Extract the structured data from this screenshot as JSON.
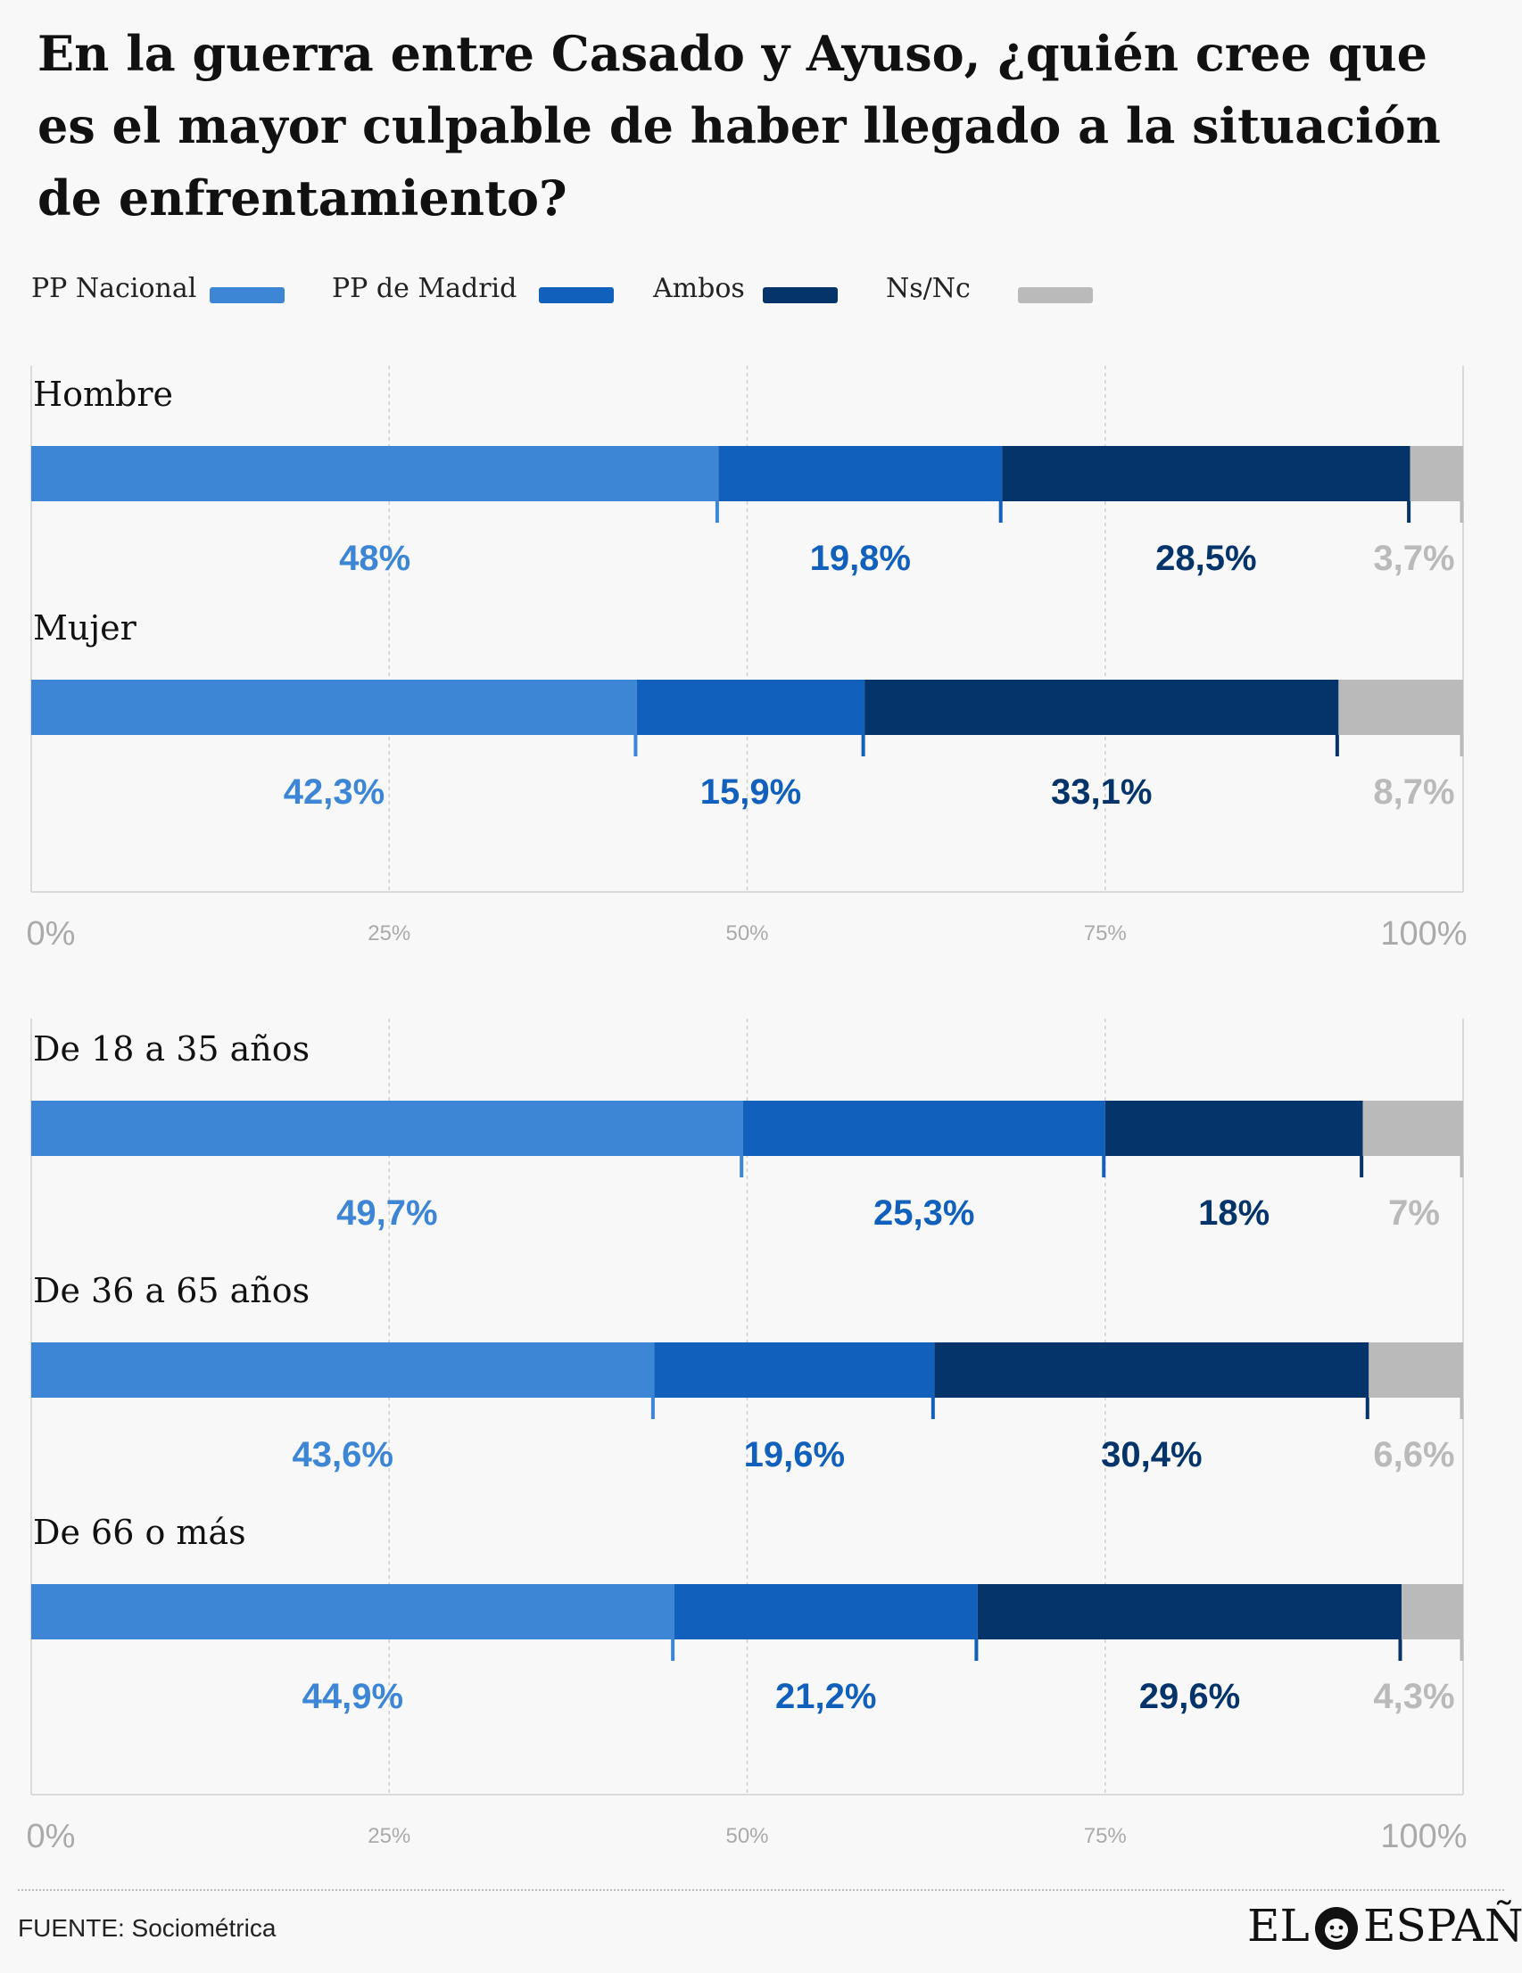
{
  "title": "En la guerra entre Casado y Ayuso, ¿quién cree que es el mayor culpable de haber llegado a la situación de enfrentamiento?",
  "legend": [
    {
      "label": "PP Nacional",
      "color": "#3d86d5"
    },
    {
      "label": "PP de Madrid",
      "color": "#1060bc"
    },
    {
      "label": "Ambos",
      "color": "#05346a"
    },
    {
      "label": "Ns/Nc",
      "color": "#bababa"
    }
  ],
  "colors": {
    "segments": [
      "#3d86d5",
      "#1060bc",
      "#05346a",
      "#bababa"
    ],
    "labels": [
      "#3d86d5",
      "#1060bc",
      "#05346a",
      "#bababa"
    ]
  },
  "chart_data": [
    {
      "type": "bar",
      "stacked": true,
      "orientation": "horizontal",
      "series_names": [
        "PP Nacional",
        "PP de Madrid",
        "Ambos",
        "Ns/Nc"
      ],
      "categories": [
        "Hombre",
        "Mujer"
      ],
      "values": [
        [
          48,
          19.8,
          28.5,
          3.7
        ],
        [
          42.3,
          15.9,
          33.1,
          8.7
        ]
      ],
      "value_labels": [
        [
          "48%",
          "19,8%",
          "28,5%",
          "3,7%"
        ],
        [
          "42,3%",
          "15,9%",
          "33,1%",
          "8,7%"
        ]
      ],
      "xlim": [
        0,
        100
      ],
      "ticks": [
        "0%",
        "25%",
        "50%",
        "75%",
        "100%"
      ]
    },
    {
      "type": "bar",
      "stacked": true,
      "orientation": "horizontal",
      "series_names": [
        "PP Nacional",
        "PP de Madrid",
        "Ambos",
        "Ns/Nc"
      ],
      "categories": [
        "De 18 a 35 años",
        "De 36 a 65 años",
        "De 66 o más"
      ],
      "values": [
        [
          49.7,
          25.3,
          18,
          7
        ],
        [
          43.6,
          19.6,
          30.4,
          6.6
        ],
        [
          44.9,
          21.2,
          29.6,
          4.3
        ]
      ],
      "value_labels": [
        [
          "49,7%",
          "25,3%",
          "18%",
          "7%"
        ],
        [
          "43,6%",
          "19,6%",
          "30,4%",
          "6,6%"
        ],
        [
          "44,9%",
          "21,2%",
          "29,6%",
          "4,3%"
        ]
      ],
      "xlim": [
        0,
        100
      ],
      "ticks": [
        "0%",
        "25%",
        "50%",
        "75%",
        "100%"
      ]
    }
  ],
  "footer": {
    "source": "FUENTE: Sociométrica",
    "logo_left": "EL",
    "logo_right": "ESPAÑOL",
    "logo_mark": "lion-logo-icon"
  }
}
